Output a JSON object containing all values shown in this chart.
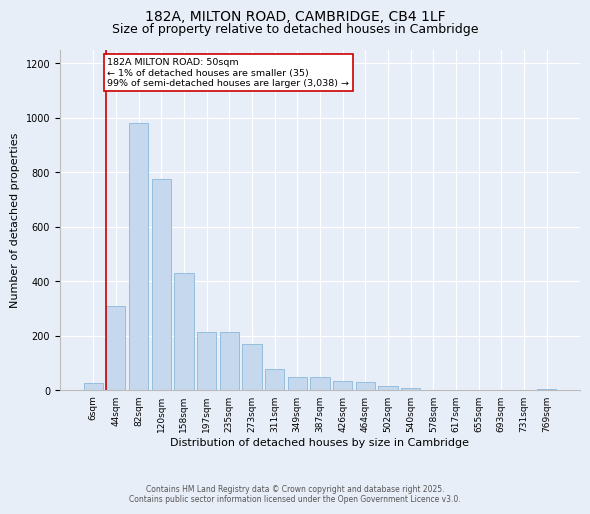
{
  "title1": "182A, MILTON ROAD, CAMBRIDGE, CB4 1LF",
  "title2": "Size of property relative to detached houses in Cambridge",
  "xlabel": "Distribution of detached houses by size in Cambridge",
  "ylabel": "Number of detached properties",
  "categories": [
    "6sqm",
    "44sqm",
    "82sqm",
    "120sqm",
    "158sqm",
    "197sqm",
    "235sqm",
    "273sqm",
    "311sqm",
    "349sqm",
    "387sqm",
    "426sqm",
    "464sqm",
    "502sqm",
    "540sqm",
    "578sqm",
    "617sqm",
    "655sqm",
    "693sqm",
    "731sqm",
    "769sqm"
  ],
  "values": [
    25,
    310,
    980,
    775,
    430,
    215,
    215,
    170,
    80,
    50,
    50,
    35,
    30,
    15,
    10,
    0,
    0,
    0,
    0,
    0,
    5
  ],
  "bar_color": "#c5d8ed",
  "bar_edge_color": "#7bafd4",
  "background_color": "#e8eef8",
  "grid_color": "#ffffff",
  "annotation_text": "182A MILTON ROAD: 50sqm\n← 1% of detached houses are smaller (35)\n99% of semi-detached houses are larger (3,038) →",
  "annotation_box_color": "#ffffff",
  "annotation_box_edge": "#cc0000",
  "vline_color": "#cc0000",
  "vline_x_index": 1,
  "ylim": [
    0,
    1250
  ],
  "yticks": [
    0,
    200,
    400,
    600,
    800,
    1000,
    1200
  ],
  "footer1": "Contains HM Land Registry data © Crown copyright and database right 2025.",
  "footer2": "Contains public sector information licensed under the Open Government Licence v3.0.",
  "title_fontsize": 10,
  "subtitle_fontsize": 9,
  "tick_fontsize": 6.5,
  "ylabel_fontsize": 8,
  "xlabel_fontsize": 8,
  "footer_fontsize": 5.5
}
